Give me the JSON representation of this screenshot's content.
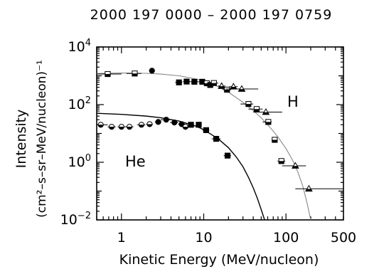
{
  "chart_data": {
    "type": "scatter",
    "title": "2000 197 0000 – 2000 197 0759",
    "xlabel": "Kinetic Energy (MeV/nucleon)",
    "ylabel_main": "Intensity",
    "ylabel_units": "(cm²–s–sr–MeV/nucleon)⁻¹",
    "xscale": "log",
    "yscale": "log",
    "xlim": [
      0.5,
      500
    ],
    "ylim": [
      0.01,
      10000
    ],
    "x_ticks": [
      {
        "value": 1,
        "label": "1"
      },
      {
        "value": 10,
        "label": "10"
      },
      {
        "value": 100,
        "label": "100"
      },
      {
        "value": 500,
        "label": "500"
      }
    ],
    "y_ticks": [
      {
        "value": 0.01,
        "base": "10",
        "exp": "−2"
      },
      {
        "value": 1,
        "base": "10",
        "exp": "0"
      },
      {
        "value": 100,
        "base": "10",
        "exp": "2"
      },
      {
        "value": 10000,
        "base": "10",
        "exp": "4"
      }
    ],
    "grid": false,
    "series": [
      {
        "name": "H",
        "color": "#000000",
        "fit_color": "#888888",
        "fit": [
          [
            0.5,
            1200
          ],
          [
            1,
            1250
          ],
          [
            2,
            1220
          ],
          [
            3,
            1150
          ],
          [
            5,
            1000
          ],
          [
            8,
            780
          ],
          [
            10,
            650
          ],
          [
            15,
            420
          ],
          [
            20,
            270
          ],
          [
            30,
            120
          ],
          [
            40,
            62
          ],
          [
            50,
            35
          ],
          [
            60,
            20
          ],
          [
            70,
            12
          ],
          [
            80,
            7.5
          ],
          [
            100,
            3
          ],
          [
            120,
            1.2
          ],
          [
            140,
            0.45
          ],
          [
            160,
            0.15
          ],
          [
            180,
            0.04
          ],
          [
            200,
            0.01
          ]
        ],
        "points": [
          {
            "x": 0.68,
            "y": 1150,
            "xlo": 0.5,
            "xhi": 1.0,
            "marker": "square-half"
          },
          {
            "x": 1.45,
            "y": 1200,
            "xlo": 1.15,
            "xhi": 1.75,
            "marker": "square-half"
          },
          {
            "x": 2.35,
            "y": 1500,
            "xlo": 2.35,
            "xhi": 2.35,
            "marker": "circle-filled"
          },
          {
            "x": 5.0,
            "y": 590,
            "xlo": 4.5,
            "xhi": 5.5,
            "marker": "square-filled"
          },
          {
            "x": 6.2,
            "y": 630,
            "xlo": 5.6,
            "xhi": 6.9,
            "marker": "square-filled"
          },
          {
            "x": 7.7,
            "y": 620,
            "xlo": 6.9,
            "xhi": 8.6,
            "marker": "square-filled"
          },
          {
            "x": 9.6,
            "y": 620,
            "xlo": 8.6,
            "xhi": 10.7,
            "marker": "square-filled"
          },
          {
            "x": 10.9,
            "y": 550,
            "xlo": 9.6,
            "xhi": 12.3,
            "marker": "square-half"
          },
          {
            "x": 12.0,
            "y": 480,
            "xlo": 10.6,
            "xhi": 13.6,
            "marker": "square-filled"
          },
          {
            "x": 13.3,
            "y": 560,
            "xlo": 11.5,
            "xhi": 15.0,
            "marker": "square-half"
          },
          {
            "x": 16.5,
            "y": 440,
            "xlo": 14.8,
            "xhi": 18.4,
            "marker": "triangle-half"
          },
          {
            "x": 19.2,
            "y": 330,
            "xlo": 17.0,
            "xhi": 21.5,
            "marker": "square-half"
          },
          {
            "x": 23.0,
            "y": 420,
            "xlo": 20.5,
            "xhi": 25.8,
            "marker": "triangle-half"
          },
          {
            "x": 29.0,
            "y": 350,
            "xlo": 18.5,
            "xhi": 46.0,
            "marker": "triangle-half"
          },
          {
            "x": 35.0,
            "y": 105,
            "xlo": 28.0,
            "xhi": 40.0,
            "marker": "square-half"
          },
          {
            "x": 44.0,
            "y": 70,
            "xlo": 35.0,
            "xhi": 52.0,
            "marker": "square-half"
          },
          {
            "x": 57.0,
            "y": 55,
            "xlo": 40.0,
            "xhi": 90.0,
            "marker": "triangle-half"
          },
          {
            "x": 61.0,
            "y": 25,
            "xlo": 52.0,
            "xhi": 67.0,
            "marker": "square-half"
          },
          {
            "x": 73.0,
            "y": 6.0,
            "xlo": 67.0,
            "xhi": 79.0,
            "marker": "square-half"
          },
          {
            "x": 88.0,
            "y": 1.1,
            "xlo": 79.0,
            "xhi": 98.0,
            "marker": "square-half"
          },
          {
            "x": 130.0,
            "y": 0.75,
            "xlo": 90.0,
            "xhi": 175.0,
            "marker": "triangle-half"
          },
          {
            "x": 190.0,
            "y": 0.12,
            "xlo": 130.0,
            "xhi": 500.0,
            "marker": "triangle-half"
          }
        ]
      },
      {
        "name": "He",
        "color": "#000000",
        "fit_color": "#000000",
        "fit": [
          [
            0.5,
            50
          ],
          [
            1,
            46
          ],
          [
            2,
            40
          ],
          [
            3,
            35
          ],
          [
            5,
            27
          ],
          [
            8,
            18
          ],
          [
            10,
            13.5
          ],
          [
            15,
            6.5
          ],
          [
            20,
            3.2
          ],
          [
            25,
            1.5
          ],
          [
            30,
            0.7
          ],
          [
            35,
            0.3
          ],
          [
            40,
            0.13
          ],
          [
            45,
            0.055
          ],
          [
            50,
            0.023
          ],
          [
            55,
            0.01
          ]
        ],
        "points": [
          {
            "x": 0.56,
            "y": 20,
            "xlo": 0.5,
            "xhi": 0.68,
            "marker": "circle-half"
          },
          {
            "x": 0.76,
            "y": 17,
            "xlo": 0.68,
            "xhi": 0.85,
            "marker": "circle-half"
          },
          {
            "x": 1.0,
            "y": 17,
            "xlo": 0.9,
            "xhi": 1.1,
            "marker": "circle-half"
          },
          {
            "x": 1.25,
            "y": 17,
            "xlo": 1.1,
            "xhi": 1.4,
            "marker": "circle-half"
          },
          {
            "x": 1.75,
            "y": 20,
            "xlo": 1.55,
            "xhi": 1.95,
            "marker": "circle-half"
          },
          {
            "x": 2.2,
            "y": 21,
            "xlo": 2.0,
            "xhi": 2.4,
            "marker": "circle-half"
          },
          {
            "x": 2.8,
            "y": 25,
            "xlo": 2.55,
            "xhi": 3.05,
            "marker": "circle-filled"
          },
          {
            "x": 3.5,
            "y": 30,
            "xlo": 3.0,
            "xhi": 4.0,
            "marker": "circle-filled"
          },
          {
            "x": 4.4,
            "y": 24,
            "xlo": 3.9,
            "xhi": 4.9,
            "marker": "circle-filled"
          },
          {
            "x": 5.4,
            "y": 21,
            "xlo": 4.9,
            "xhi": 5.9,
            "marker": "circle-filled"
          },
          {
            "x": 6.0,
            "y": 17,
            "xlo": 5.5,
            "xhi": 6.5,
            "marker": "circle-half"
          },
          {
            "x": 7.0,
            "y": 20,
            "xlo": 6.5,
            "xhi": 7.6,
            "marker": "square-filled"
          },
          {
            "x": 8.7,
            "y": 20,
            "xlo": 8.0,
            "xhi": 9.4,
            "marker": "square-filled"
          },
          {
            "x": 10.7,
            "y": 13,
            "xlo": 9.7,
            "xhi": 11.7,
            "marker": "square-filled"
          },
          {
            "x": 14.2,
            "y": 6.5,
            "xlo": 12.5,
            "xhi": 16.0,
            "marker": "square-filled"
          },
          {
            "x": 19.5,
            "y": 1.7,
            "xlo": 17.5,
            "xhi": 21.5,
            "marker": "square-filled"
          }
        ]
      }
    ],
    "annotations": [
      {
        "text": "H",
        "series": "H"
      },
      {
        "text": "He",
        "series": "He"
      }
    ]
  }
}
